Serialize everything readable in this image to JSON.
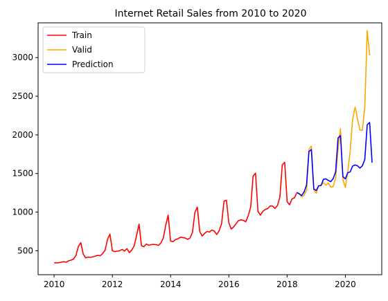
{
  "chart_data": {
    "type": "line",
    "title": "Internet Retail Sales from 2010 to 2020",
    "xlabel": "",
    "ylabel": "",
    "xlim": [
      2009.45,
      2021.25
    ],
    "ylim": [
      190,
      3450
    ],
    "x_ticks": [
      2010,
      2012,
      2014,
      2016,
      2018,
      2020
    ],
    "x_tick_labels": [
      "2010",
      "2012",
      "2014",
      "2016",
      "2018",
      "2020"
    ],
    "y_ticks": [
      500,
      1000,
      1500,
      2000,
      2500,
      3000
    ],
    "y_tick_labels": [
      "500",
      "1000",
      "1500",
      "2000",
      "2500",
      "3000"
    ],
    "grid": false,
    "legend_position": "top-left",
    "series": [
      {
        "name": "Train",
        "color": "#ff0000",
        "x_start": 2010.0,
        "x_step": 0.08333,
        "values": [
          345,
          342,
          345,
          352,
          358,
          352,
          370,
          378,
          392,
          440,
          555,
          605,
          455,
          408,
          418,
          415,
          422,
          432,
          440,
          435,
          465,
          505,
          650,
          715,
          500,
          488,
          495,
          500,
          518,
          495,
          528,
          475,
          510,
          565,
          700,
          845,
          565,
          552,
          588,
          570,
          580,
          582,
          580,
          570,
          600,
          665,
          830,
          960,
          625,
          618,
          645,
          655,
          675,
          670,
          665,
          648,
          665,
          740,
          995,
          1065,
          750,
          690,
          725,
          750,
          742,
          768,
          755,
          710,
          760,
          850,
          1140,
          1155,
          860,
          780,
          810,
          850,
          890,
          900,
          893,
          875,
          955,
          1065,
          1465,
          1505,
          1010,
          960,
          1010,
          1035,
          1045,
          1080,
          1078,
          1048,
          1085,
          1190,
          1610,
          1645,
          1135,
          1095,
          1170,
          1185,
          1250
        ]
      },
      {
        "name": "Valid",
        "color": "#ffa500",
        "x_start": 2018.333,
        "x_step": 0.08333,
        "values": [
          1250,
          1235,
          1195,
          1220,
          1280,
          1810,
          1855,
          1290,
          1245,
          1340,
          1350,
          1380,
          1350,
          1375,
          1325,
          1330,
          1445,
          1810,
          2080,
          1420,
          1320,
          1520,
          1790,
          2200,
          2360,
          2210,
          2060,
          2060,
          2360,
          3350,
          3030
        ]
      },
      {
        "name": "Prediction",
        "color": "#0000ff",
        "x_start": 2018.333,
        "x_step": 0.08333,
        "values": [
          1255,
          1238,
          1215,
          1260,
          1350,
          1785,
          1810,
          1300,
          1280,
          1340,
          1345,
          1425,
          1430,
          1410,
          1395,
          1435,
          1520,
          1960,
          1990,
          1460,
          1430,
          1510,
          1520,
          1595,
          1610,
          1600,
          1570,
          1600,
          1680,
          2130,
          2160,
          1640
        ]
      }
    ]
  }
}
